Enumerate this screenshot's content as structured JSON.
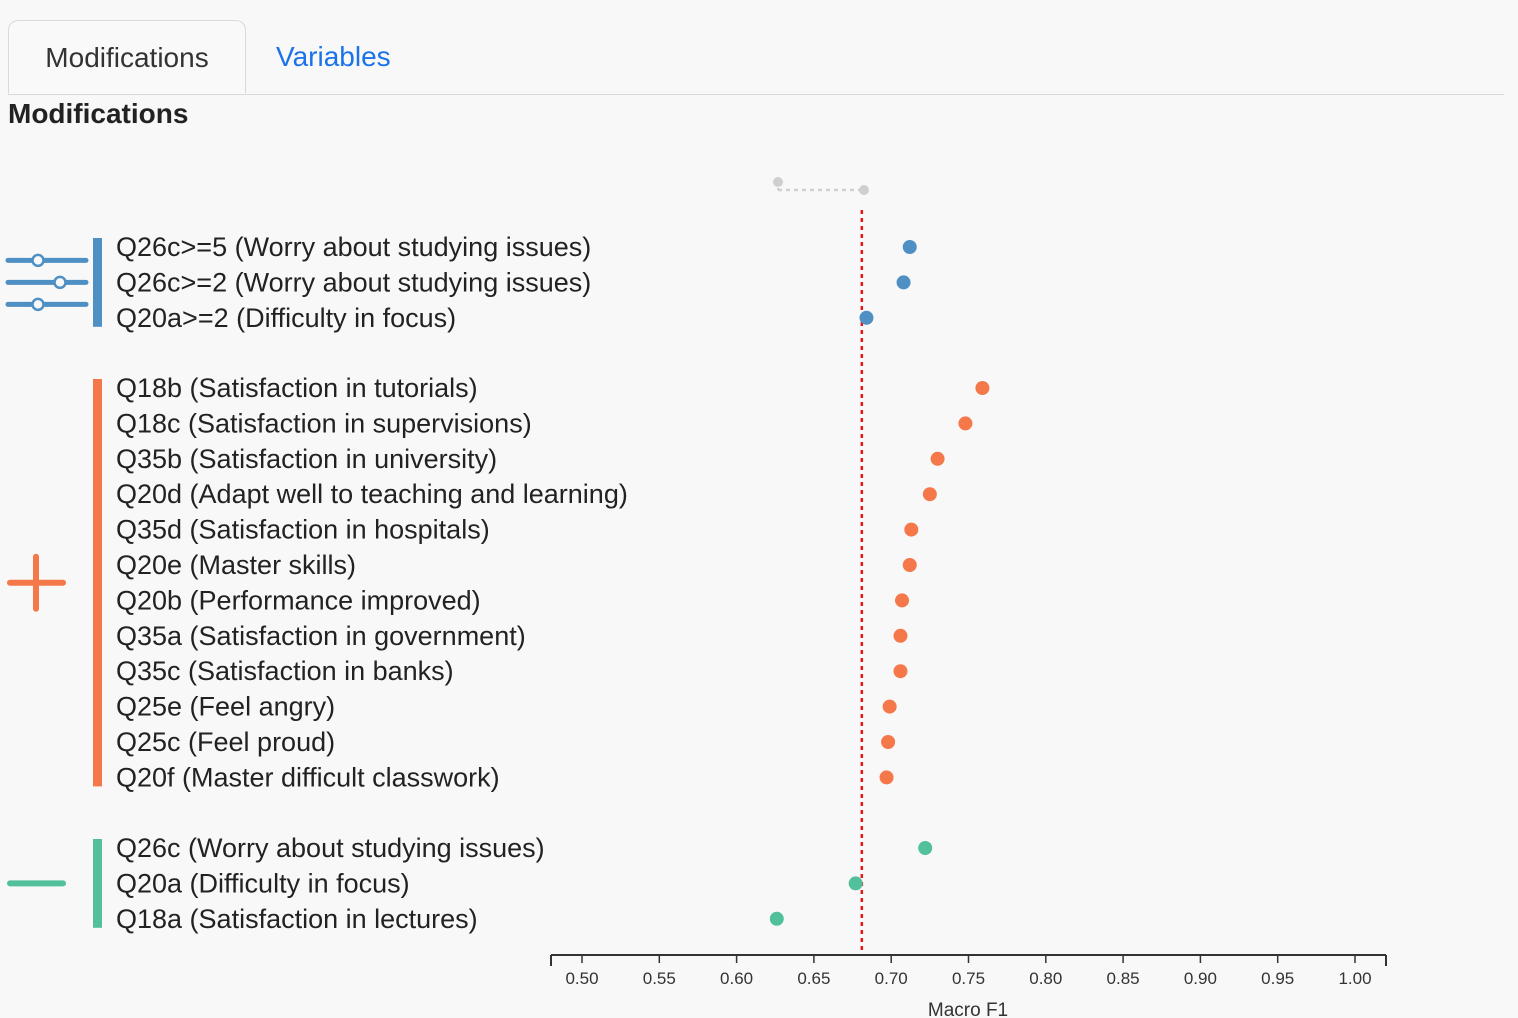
{
  "tabs": [
    {
      "label": "Modifications",
      "active": true
    },
    {
      "label": "Variables",
      "active": false
    }
  ],
  "section_title": "Modifications",
  "colors": {
    "threshold": "#4e8fc4",
    "add": "#f4784a",
    "remove": "#52c09a",
    "baseline": "#e01a1a",
    "legend": "#cfcfcf"
  },
  "icons": {
    "threshold": "sliders-icon",
    "add": "plus-icon",
    "remove": "minus-icon"
  },
  "chart_data": {
    "type": "scatter",
    "xlabel": "Macro F1",
    "xlim": [
      0.48,
      1.02
    ],
    "xticks": [
      "0.50",
      "0.55",
      "0.60",
      "0.65",
      "0.70",
      "0.75",
      "0.80",
      "0.85",
      "0.90",
      "0.95",
      "1.00"
    ],
    "baseline": 0.681,
    "groups": [
      {
        "key": "threshold",
        "items": [
          {
            "label": "Q26c>=5 (Worry about studying issues)",
            "value": 0.712
          },
          {
            "label": "Q26c>=2 (Worry about studying issues)",
            "value": 0.708
          },
          {
            "label": "Q20a>=2 (Difficulty in focus)",
            "value": 0.684
          }
        ]
      },
      {
        "key": "add",
        "items": [
          {
            "label": "Q18b (Satisfaction in tutorials)",
            "value": 0.759
          },
          {
            "label": "Q18c (Satisfaction in supervisions)",
            "value": 0.748
          },
          {
            "label": "Q35b (Satisfaction in university)",
            "value": 0.73
          },
          {
            "label": "Q20d (Adapt well to teaching and learning)",
            "value": 0.725
          },
          {
            "label": "Q35d (Satisfaction in hospitals)",
            "value": 0.713
          },
          {
            "label": "Q20e (Master skills)",
            "value": 0.712
          },
          {
            "label": "Q20b (Performance improved)",
            "value": 0.707
          },
          {
            "label": "Q35a (Satisfaction in government)",
            "value": 0.706
          },
          {
            "label": "Q35c (Satisfaction in banks)",
            "value": 0.706
          },
          {
            "label": "Q25e (Feel angry)",
            "value": 0.699
          },
          {
            "label": "Q25c (Feel proud)",
            "value": 0.698
          },
          {
            "label": "Q20f (Master difficult classwork)",
            "value": 0.697
          }
        ]
      },
      {
        "key": "remove",
        "items": [
          {
            "label": "Q26c (Worry about studying issues)",
            "value": 0.722
          },
          {
            "label": "Q20a (Difficulty in focus)",
            "value": 0.677
          },
          {
            "label": "Q18a (Satisfaction in lectures)",
            "value": 0.626
          }
        ]
      }
    ]
  }
}
